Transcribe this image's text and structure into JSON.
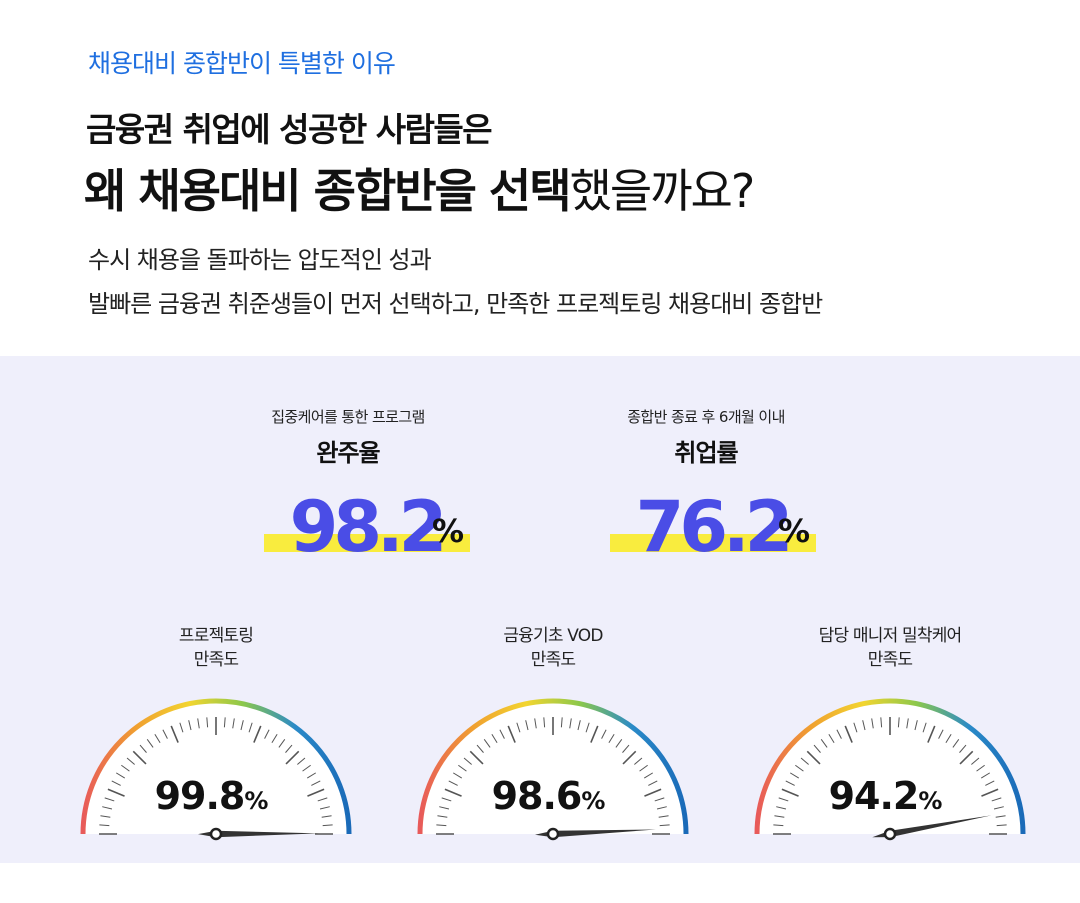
{
  "header": {
    "eyebrow": "채용대비 종합반이 특별한 이유",
    "headline_line1": "금융권 취업에 성공한 사람들은",
    "headline_line2_strong": "왜 채용대비 종합반을 선택",
    "headline_line2_rest": "했을까요?",
    "sub_line1": "수시 채용을 돌파하는 압도적인 성과",
    "sub_line2": "발빠른 금융권 취준생들이 먼저 선택하고, 만족한 프로젝토링 채용대비 종합반"
  },
  "stats": [
    {
      "caption": "집중케어를 통한 프로그램",
      "title": "완주율",
      "value": "98.2",
      "unit": "%"
    },
    {
      "caption": "종합반 종료 후 6개월 이내",
      "title": "취업률",
      "value": "76.2",
      "unit": "%"
    }
  ],
  "gauges": [
    {
      "label_line1": "프로젝토링",
      "label_line2": "만족도",
      "value": "99.8",
      "unit": "%",
      "level": 99.8
    },
    {
      "label_line1": "금융기초 VOD",
      "label_line2": "만족도",
      "value": "98.6",
      "unit": "%",
      "level": 98.6
    },
    {
      "label_line1": "담당 매니저 밀착케어",
      "label_line2": "만족도",
      "value": "94.2",
      "unit": "%",
      "level": 94.2
    }
  ],
  "colors": {
    "accent_blue": "#1f6fe0",
    "stat_value": "#4a4de6",
    "highlight": "#f9ec3e",
    "panel_bg": "#efeffb",
    "gauge_gradient": [
      "#e85a5a",
      "#f0a030",
      "#f2d530",
      "#8cc84b",
      "#2a8ac8",
      "#1a6ab8"
    ]
  }
}
